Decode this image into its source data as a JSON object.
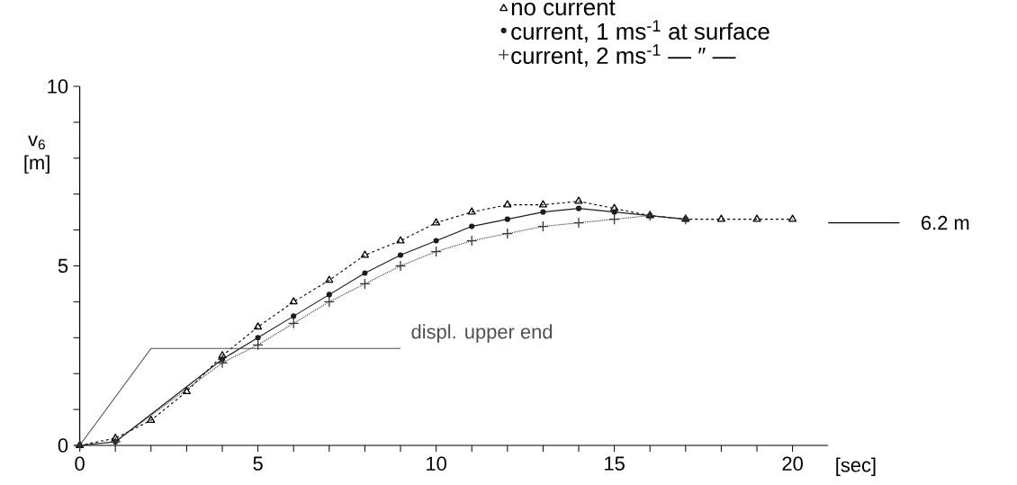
{
  "chart_data": {
    "type": "line",
    "xlabel": "[sec]",
    "ylabel": "v$_{6}$ [m]",
    "xlim": [
      0,
      21
    ],
    "ylim": [
      0,
      10
    ],
    "xticks": [
      0,
      {
        "value": 1,
        "label": null
      },
      {
        "value": 2,
        "label": null
      },
      {
        "value": 3,
        "label": null
      },
      {
        "value": 4,
        "label": null
      },
      5,
      {
        "value": 6,
        "label": null
      },
      {
        "value": 7,
        "label": null
      },
      {
        "value": 8,
        "label": null
      },
      {
        "value": 9,
        "label": null
      },
      10,
      {
        "value": 11,
        "label": null
      },
      {
        "value": 12,
        "label": null
      },
      {
        "value": 13,
        "label": null
      },
      {
        "value": 14,
        "label": null
      },
      15,
      {
        "value": 16,
        "label": null
      },
      {
        "value": 17,
        "label": null
      },
      {
        "value": 18,
        "label": null
      },
      {
        "value": 19,
        "label": null
      },
      20
    ],
    "yticks": [
      0,
      {
        "value": 1,
        "label": null
      },
      {
        "value": 2,
        "label": null
      },
      {
        "value": 3,
        "label": null
      },
      {
        "value": 4,
        "label": null
      },
      5,
      {
        "value": 6,
        "label": null
      },
      {
        "value": 7,
        "label": null
      },
      {
        "value": 8,
        "label": null
      },
      {
        "value": 9,
        "label": null
      },
      10
    ],
    "legend": "top right",
    "series": [
      {
        "name": "no current",
        "color": "#000000",
        "marker": "triangle",
        "line_style": "dashed",
        "x": [
          0,
          1,
          2,
          3,
          4,
          5,
          6,
          7,
          8,
          9,
          10,
          11,
          12,
          13,
          14,
          15,
          16,
          17,
          18,
          19,
          20
        ],
        "values": [
          0,
          0.2,
          0.7,
          1.5,
          2.5,
          3.3,
          4.0,
          4.6,
          5.3,
          5.7,
          6.2,
          6.5,
          6.7,
          6.7,
          6.8,
          6.6,
          6.4,
          6.3,
          6.3,
          6.3,
          6.3
        ]
      },
      {
        "name": "current, 1 ms$^{-1}$ at surface",
        "color": "#1c1c1c",
        "marker": "circle",
        "line_style": "solid",
        "x": [
          0,
          1,
          4,
          5,
          6,
          7,
          8,
          9,
          10,
          11,
          12,
          13,
          14,
          15,
          16,
          17
        ],
        "values": [
          0,
          0.1,
          2.4,
          3.0,
          3.6,
          4.2,
          4.8,
          5.3,
          5.7,
          6.1,
          6.3,
          6.5,
          6.6,
          6.5,
          6.4,
          6.3
        ]
      },
      {
        "name": "current, 2 ms$^{-1}$ — ″ —",
        "color": "#383838",
        "marker": "cross",
        "line_style": "dotted",
        "x": [
          0,
          1,
          4,
          5,
          6,
          7,
          8,
          9,
          10,
          11,
          12,
          13,
          14,
          15,
          16,
          17
        ],
        "values": [
          0,
          0.1,
          2.3,
          2.8,
          3.4,
          4.0,
          4.5,
          5.0,
          5.4,
          5.7,
          5.9,
          6.1,
          6.2,
          6.3,
          6.4,
          6.3
        ]
      },
      {
        "name": "displ. upper end",
        "color": "#505050",
        "marker": "none",
        "line_style": "solid",
        "x": [
          0,
          2,
          9
        ],
        "values": [
          0,
          2.7,
          2.7
        ]
      }
    ],
    "ref_lines": [
      {
        "axis": "y",
        "value": 6.2,
        "label": "6.2 m"
      }
    ]
  }
}
